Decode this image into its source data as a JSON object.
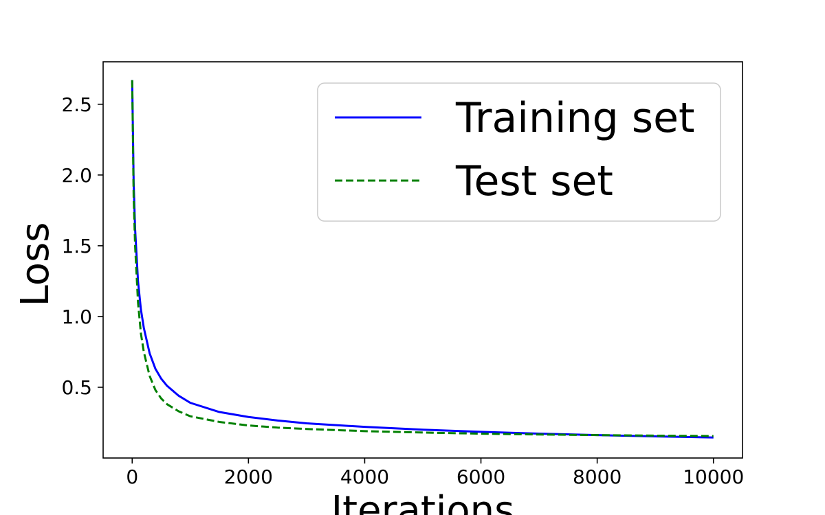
{
  "chart_data": {
    "type": "line",
    "title": "",
    "xlabel": "Iterations",
    "ylabel": "Loss",
    "xlim": [
      -500,
      10500
    ],
    "ylim": [
      0.0,
      2.8
    ],
    "x_ticks": [
      0,
      2000,
      4000,
      6000,
      8000,
      10000
    ],
    "x_tick_labels": [
      "0",
      "2000",
      "4000",
      "6000",
      "8000",
      "10000"
    ],
    "y_ticks": [
      0.5,
      1.0,
      1.5,
      2.0,
      2.5
    ],
    "y_tick_labels": [
      "0.5",
      "1.0",
      "1.5",
      "2.0",
      "2.5"
    ],
    "grid": false,
    "legend_position": "top-right",
    "x": [
      0,
      25,
      50,
      100,
      150,
      200,
      300,
      400,
      500,
      600,
      800,
      1000,
      1500,
      2000,
      2500,
      3000,
      4000,
      5000,
      6000,
      7000,
      8000,
      9000,
      10000
    ],
    "series": [
      {
        "name": "Training set",
        "color": "#0000ff",
        "style": "solid",
        "values": [
          2.67,
          1.95,
          1.62,
          1.25,
          1.05,
          0.92,
          0.74,
          0.63,
          0.56,
          0.51,
          0.44,
          0.39,
          0.325,
          0.29,
          0.265,
          0.245,
          0.22,
          0.2,
          0.185,
          0.172,
          0.162,
          0.153,
          0.145
        ]
      },
      {
        "name": "Test set",
        "color": "#008000",
        "style": "dashed",
        "values": [
          2.67,
          1.85,
          1.5,
          1.1,
          0.88,
          0.75,
          0.58,
          0.48,
          0.42,
          0.38,
          0.33,
          0.295,
          0.255,
          0.23,
          0.215,
          0.205,
          0.19,
          0.18,
          0.172,
          0.166,
          0.162,
          0.158,
          0.155
        ]
      }
    ]
  }
}
